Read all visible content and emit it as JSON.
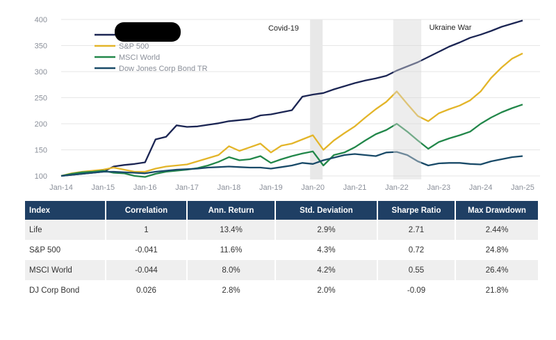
{
  "chart_data": {
    "type": "line",
    "title": "",
    "xlabel": "",
    "ylabel": "",
    "ylim": [
      100,
      400
    ],
    "yticks": [
      "100",
      "150",
      "200",
      "250",
      "300",
      "350",
      "400"
    ],
    "xticks": [
      "Jan-14",
      "Jan-15",
      "Jan-16",
      "Jan-17",
      "Jan-18",
      "Jan-19",
      "Jan-20",
      "Jan-21",
      "Jan-22",
      "Jan-23",
      "Jan-24",
      "Jan-25"
    ],
    "grid": "horizontal",
    "legend_position": "top-left",
    "x": [
      "2014-01",
      "2014-04",
      "2014-07",
      "2014-10",
      "2015-01",
      "2015-04",
      "2015-07",
      "2015-10",
      "2016-01",
      "2016-04",
      "2016-07",
      "2016-10",
      "2017-01",
      "2017-04",
      "2017-07",
      "2017-10",
      "2018-01",
      "2018-04",
      "2018-07",
      "2018-10",
      "2019-01",
      "2019-04",
      "2019-07",
      "2019-10",
      "2020-01",
      "2020-04",
      "2020-07",
      "2020-10",
      "2021-01",
      "2021-04",
      "2021-07",
      "2021-10",
      "2022-01",
      "2022-04",
      "2022-07",
      "2022-10",
      "2023-01",
      "2023-04",
      "2023-07",
      "2023-10",
      "2024-01",
      "2024-04",
      "2024-07",
      "2024-10",
      "2025-01"
    ],
    "series": [
      {
        "name": "",
        "redacted": true,
        "color": "#1b2553",
        "values": [
          100,
          102,
          104,
          106,
          108,
          118,
          121,
          123,
          126,
          170,
          175,
          197,
          194,
          195,
          198,
          201,
          205,
          207,
          209,
          216,
          218,
          222,
          226,
          252,
          256,
          259,
          266,
          272,
          278,
          283,
          287,
          292,
          302,
          310,
          318,
          328,
          338,
          348,
          356,
          365,
          371,
          378,
          386,
          392,
          398
        ]
      },
      {
        "name": "S&P 500",
        "color": "#e3b529",
        "values": [
          100,
          105,
          108,
          110,
          112,
          116,
          112,
          108,
          108,
          114,
          118,
          120,
          122,
          128,
          134,
          140,
          157,
          148,
          155,
          162,
          145,
          158,
          162,
          170,
          178,
          150,
          168,
          182,
          195,
          212,
          228,
          242,
          262,
          238,
          215,
          205,
          220,
          228,
          235,
          245,
          262,
          288,
          308,
          325,
          335
        ]
      },
      {
        "name": "MSCI World",
        "color": "#22874a",
        "values": [
          100,
          104,
          107,
          108,
          110,
          106,
          105,
          100,
          98,
          104,
          108,
          110,
          112,
          115,
          120,
          127,
          136,
          130,
          132,
          138,
          125,
          132,
          138,
          143,
          147,
          120,
          140,
          145,
          155,
          168,
          180,
          188,
          200,
          185,
          168,
          152,
          165,
          172,
          178,
          185,
          200,
          212,
          222,
          230,
          237
        ]
      },
      {
        "name": "Dow Jones Corp Bond TR",
        "color": "#194a68",
        "values": [
          100,
          102,
          104,
          106,
          108,
          108,
          107,
          106,
          105,
          108,
          110,
          112,
          113,
          114,
          116,
          117,
          118,
          117,
          116,
          116,
          114,
          117,
          120,
          125,
          123,
          130,
          135,
          140,
          142,
          140,
          138,
          145,
          146,
          140,
          128,
          120,
          124,
          125,
          125,
          123,
          122,
          128,
          132,
          136,
          138
        ]
      }
    ],
    "annotations": [
      {
        "label": "Covid-19",
        "start": "2020-01",
        "end": "2020-03"
      },
      {
        "label": "Ukraine War",
        "start": "2021-12",
        "end": "2022-08"
      }
    ]
  },
  "table": {
    "headers": [
      "Index",
      "Correlation",
      "Ann. Return",
      "Std. Deviation",
      "Sharpe Ratio",
      "Max Drawdown"
    ],
    "rows": [
      [
        "Life",
        "1",
        "13.4%",
        "2.9%",
        "2.71",
        "2.44%"
      ],
      [
        "S&P 500",
        "-0.041",
        "11.6%",
        "4.3%",
        "0.72",
        "24.8%"
      ],
      [
        "MSCI World",
        "-0.044",
        "8.0%",
        "4.2%",
        "0.55",
        "26.4%"
      ],
      [
        "DJ Corp Bond",
        "0.026",
        "2.8%",
        "2.0%",
        "-0.09",
        "21.8%"
      ]
    ],
    "header_color": "#1f3f64"
  }
}
